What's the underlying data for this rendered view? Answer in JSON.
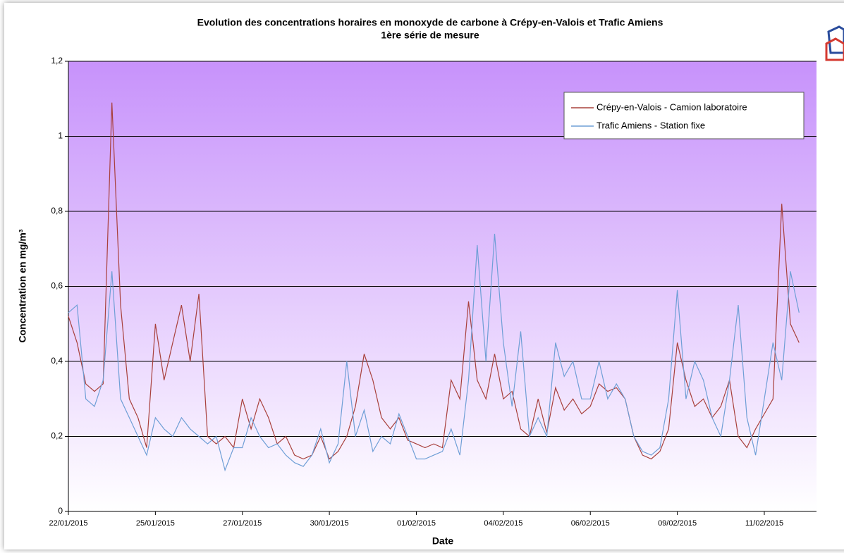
{
  "chart_data": {
    "type": "line",
    "title": "Evolution des concentrations horaires en monoxyde de carbone à Crépy-en-Valois et Trafic Amiens",
    "subtitle": "1ère série de mesure",
    "x_label": "Date",
    "y_label": "Concentration en mg/m³",
    "categories": [
      "22/01/2015",
      null,
      null,
      null,
      null,
      null,
      null,
      null,
      null,
      null,
      "25/01/2015",
      null,
      null,
      null,
      null,
      null,
      null,
      null,
      null,
      null,
      "27/01/2015",
      null,
      null,
      null,
      null,
      null,
      null,
      null,
      null,
      null,
      "30/01/2015",
      null,
      null,
      null,
      null,
      null,
      null,
      null,
      null,
      null,
      "01/02/2015",
      null,
      null,
      null,
      null,
      null,
      null,
      null,
      null,
      null,
      "04/02/2015",
      null,
      null,
      null,
      null,
      null,
      null,
      null,
      null,
      null,
      "06/02/2015",
      null,
      null,
      null,
      null,
      null,
      null,
      null,
      null,
      null,
      "09/02/2015",
      null,
      null,
      null,
      null,
      null,
      null,
      null,
      null,
      null,
      "11/02/2015",
      null,
      null,
      null,
      null
    ],
    "series": [
      {
        "name": "Crépy-en-Valois - Camion laboratoire",
        "color": "#a8403c",
        "values": [
          0.52,
          0.45,
          0.34,
          0.32,
          0.34,
          1.09,
          0.55,
          0.3,
          0.25,
          0.17,
          0.5,
          0.35,
          0.45,
          0.55,
          0.4,
          0.58,
          0.2,
          0.18,
          0.2,
          0.17,
          0.3,
          0.22,
          0.3,
          0.25,
          0.18,
          0.2,
          0.15,
          0.14,
          0.15,
          0.2,
          0.14,
          0.16,
          0.2,
          0.28,
          0.42,
          0.35,
          0.25,
          0.22,
          0.25,
          0.19,
          0.18,
          0.17,
          0.18,
          0.17,
          0.35,
          0.3,
          0.56,
          0.35,
          0.3,
          0.42,
          0.3,
          0.32,
          0.22,
          0.2,
          0.3,
          0.21,
          0.33,
          0.27,
          0.3,
          0.26,
          0.28,
          0.34,
          0.32,
          0.33,
          0.3,
          0.2,
          0.15,
          0.14,
          0.16,
          0.22,
          0.45,
          0.35,
          0.28,
          0.3,
          0.25,
          0.28,
          0.35,
          0.2,
          0.17,
          0.22,
          0.26,
          0.3,
          0.82,
          0.5,
          0.45
        ]
      },
      {
        "name": "Trafic Amiens - Station fixe",
        "color": "#6f9fd6",
        "values": [
          0.53,
          0.55,
          0.3,
          0.28,
          0.35,
          0.64,
          0.3,
          0.25,
          0.2,
          0.15,
          0.25,
          0.22,
          0.2,
          0.25,
          0.22,
          0.2,
          0.18,
          0.2,
          0.11,
          0.17,
          0.17,
          0.25,
          0.2,
          0.17,
          0.18,
          0.15,
          0.13,
          0.12,
          0.15,
          0.22,
          0.13,
          0.18,
          0.4,
          0.2,
          0.27,
          0.16,
          0.2,
          0.18,
          0.26,
          0.2,
          0.14,
          0.14,
          0.15,
          0.16,
          0.22,
          0.15,
          0.35,
          0.71,
          0.4,
          0.74,
          0.45,
          0.28,
          0.48,
          0.2,
          0.25,
          0.2,
          0.45,
          0.36,
          0.4,
          0.3,
          0.3,
          0.4,
          0.3,
          0.34,
          0.3,
          0.2,
          0.16,
          0.15,
          0.17,
          0.3,
          0.59,
          0.3,
          0.4,
          0.35,
          0.25,
          0.2,
          0.35,
          0.55,
          0.25,
          0.15,
          0.3,
          0.45,
          0.35,
          0.64,
          0.53
        ]
      }
    ],
    "ylim": [
      0,
      1.2
    ],
    "yticks": [
      0,
      {
        "value": 0.2,
        "label": "0,2"
      },
      {
        "value": 0.4,
        "label": "0,4"
      },
      {
        "value": 0.6,
        "label": "0,6"
      },
      {
        "value": 0.8,
        "label": "0,8"
      },
      {
        "value": 1,
        "label": "1"
      },
      {
        "value": 1.2,
        "label": "1,2"
      }
    ],
    "grid": true,
    "legend": "upper right"
  }
}
